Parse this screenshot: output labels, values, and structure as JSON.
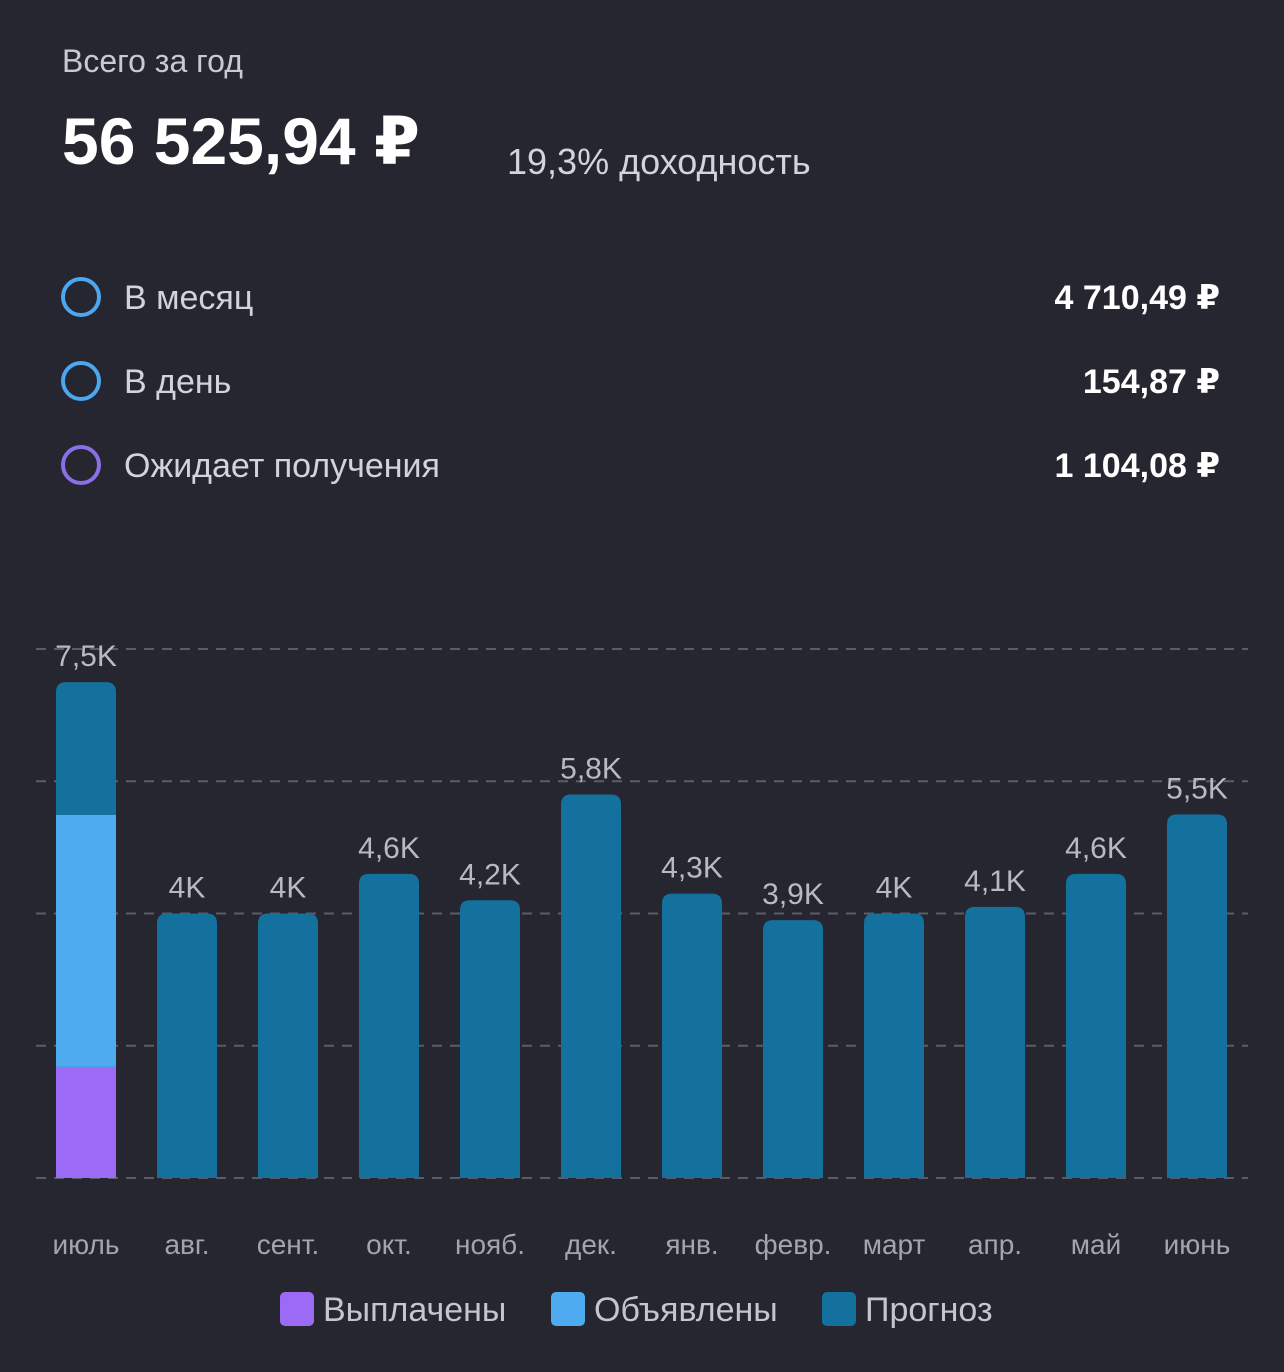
{
  "header": {
    "label": "Всего за год",
    "total": "56 525,94 ₽",
    "yield": "19,3% доходность"
  },
  "rows": [
    {
      "label": "В месяц",
      "value": "4 710,49 ₽",
      "color": "#4ba7ef"
    },
    {
      "label": "В день",
      "value": "154,87 ₽",
      "color": "#4ba7ef"
    },
    {
      "label": "Ожидает получения",
      "value": "1 104,08 ₽",
      "color": "#8a6fe6"
    }
  ],
  "chart_data": {
    "type": "stacked_bar",
    "categories": [
      "июль",
      "авг.",
      "сент.",
      "окт.",
      "нояб.",
      "дек.",
      "янв.",
      "февр.",
      "март",
      "апр.",
      "май",
      "июнь"
    ],
    "series": [
      {
        "name": "Выплачены",
        "color": "#9b6bf6",
        "values": [
          1680,
          null,
          null,
          null,
          null,
          null,
          null,
          null,
          null,
          null,
          null,
          null
        ]
      },
      {
        "name": "Объявлены",
        "color": "#4eabf0",
        "values": [
          3810,
          null,
          null,
          null,
          null,
          null,
          null,
          null,
          null,
          null,
          null,
          null
        ]
      },
      {
        "name": "Прогноз",
        "color": "#14709d",
        "values": [
          2010,
          4000,
          4000,
          4600,
          4200,
          5800,
          4300,
          3900,
          4000,
          4100,
          4600,
          5500
        ]
      }
    ],
    "totals": [
      7500,
      4000,
      4000,
      4600,
      4200,
      5800,
      4300,
      3900,
      4000,
      4100,
      4600,
      5500
    ],
    "total_labels": [
      "7,5K",
      "4K",
      "4K",
      "4,6K",
      "4,2K",
      "5,8K",
      "4,3K",
      "3,9K",
      "4K",
      "4,1K",
      "4,6K",
      "5,5K"
    ],
    "ylim": [
      0,
      8000
    ],
    "yticks": [
      0,
      2000,
      4000,
      6000,
      8000
    ],
    "grid": true
  }
}
